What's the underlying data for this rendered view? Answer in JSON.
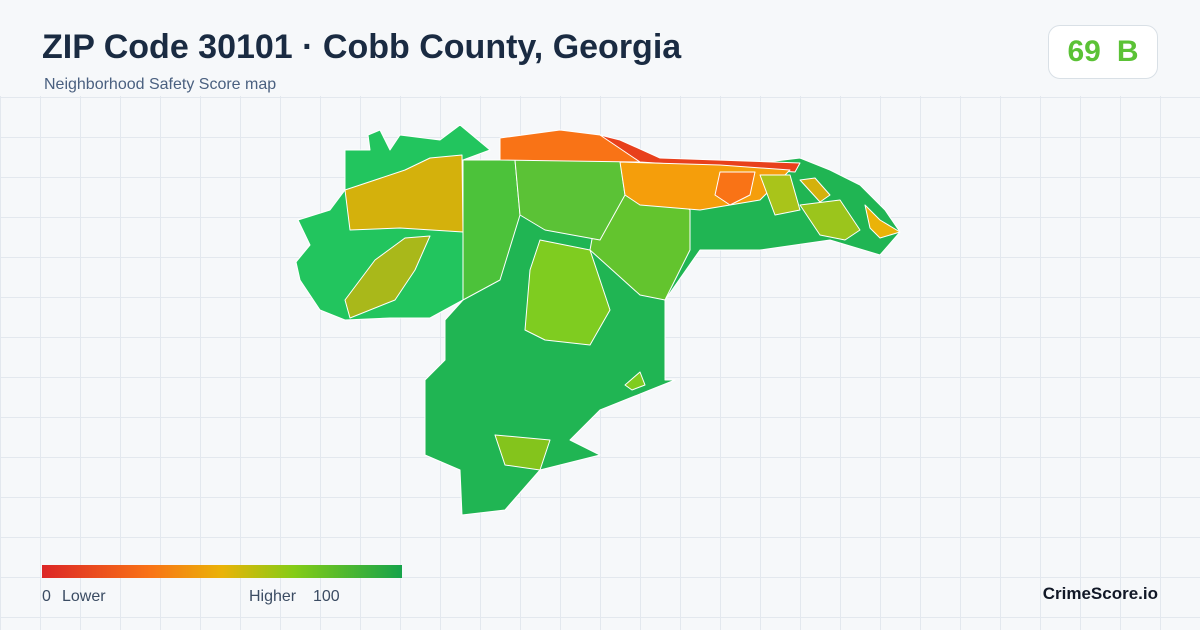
{
  "header": {
    "title": "ZIP Code 30101 · Cobb County, Georgia",
    "subtitle": "Neighborhood Safety Score map"
  },
  "score": {
    "value": 69,
    "grade": "B"
  },
  "legend": {
    "min": 0,
    "min_label": "Lower",
    "max_label": "Higher",
    "max": 100
  },
  "brand": "CrimeScore.io"
}
